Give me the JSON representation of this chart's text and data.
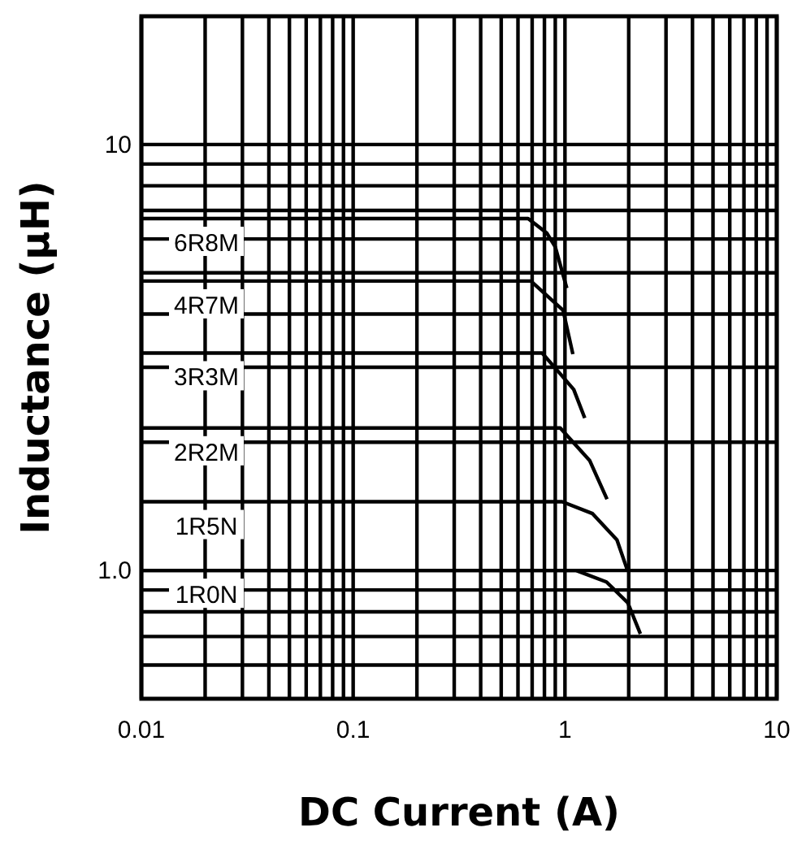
{
  "chart_data": {
    "type": "line",
    "xlabel": "DC Current (A)",
    "ylabel": "Inductance (μH)",
    "log": "xy",
    "grid": true,
    "marker": "none",
    "line_style": "solid",
    "xlim": [
      0.01,
      10
    ],
    "ylim": [
      0.5,
      20
    ],
    "xticks": [
      "0.01",
      {
        "value": 0.02,
        "label": null
      },
      {
        "value": 0.03,
        "label": null
      },
      {
        "value": 0.04,
        "label": null
      },
      {
        "value": 0.05,
        "label": null
      },
      {
        "value": 0.06,
        "label": null
      },
      {
        "value": 0.07,
        "label": null
      },
      {
        "value": 0.08,
        "label": null
      },
      {
        "value": 0.09,
        "label": null
      },
      "0.1",
      {
        "value": 0.2,
        "label": null
      },
      {
        "value": 0.3,
        "label": null
      },
      {
        "value": 0.4,
        "label": null
      },
      {
        "value": 0.5,
        "label": null
      },
      {
        "value": 0.6,
        "label": null
      },
      {
        "value": 0.7,
        "label": null
      },
      {
        "value": 0.8,
        "label": null
      },
      {
        "value": 0.9,
        "label": null
      },
      1,
      {
        "value": 2,
        "label": null
      },
      {
        "value": 3,
        "label": null
      },
      {
        "value": 4,
        "label": null
      },
      {
        "value": 5,
        "label": null
      },
      {
        "value": 6,
        "label": null
      },
      {
        "value": 7,
        "label": null
      },
      {
        "value": 8,
        "label": null
      },
      {
        "value": 9,
        "label": null
      },
      10
    ],
    "yticks": [
      {
        "value": 0.6,
        "label": null
      },
      {
        "value": 0.7,
        "label": null
      },
      {
        "value": 0.8,
        "label": null
      },
      {
        "value": 0.9,
        "label": null
      },
      {
        "value": 1,
        "label": "1.0"
      },
      {
        "value": 2,
        "label": null
      },
      {
        "value": 3,
        "label": null
      },
      {
        "value": 4,
        "label": null
      },
      {
        "value": 5,
        "label": null
      },
      {
        "value": 6,
        "label": null
      },
      {
        "value": 7,
        "label": null
      },
      {
        "value": 8,
        "label": null
      },
      {
        "value": 9,
        "label": null
      },
      10
    ],
    "series": [
      {
        "name": "6R8M",
        "color": "#000000",
        "x": [
          0.01,
          0.67,
          0.82,
          0.9,
          1.02
        ],
        "values": [
          6.7,
          6.7,
          6.2,
          5.75,
          4.6
        ]
      },
      {
        "name": "4R7M",
        "color": "#000000",
        "x": [
          0.01,
          0.69,
          0.98,
          1.09
        ],
        "values": [
          4.78,
          4.78,
          4.08,
          3.22
        ]
      },
      {
        "name": "3R3M",
        "color": "#000000",
        "x": [
          0.01,
          0.78,
          0.92,
          1.1,
          1.24
        ],
        "values": [
          3.24,
          3.24,
          2.95,
          2.66,
          2.28
        ]
      },
      {
        "name": "2R2M",
        "color": "#000000",
        "x": [
          0.01,
          0.95,
          1.31,
          1.58
        ],
        "values": [
          2.16,
          2.16,
          1.81,
          1.47
        ]
      },
      {
        "name": "1R5N",
        "color": "#000000",
        "x": [
          0.01,
          0.97,
          1.35,
          1.76,
          1.96
        ],
        "values": [
          1.45,
          1.45,
          1.36,
          1.18,
          1.01
        ]
      },
      {
        "name": "1R0N",
        "color": "#000000",
        "x": [
          0.01,
          1.13,
          1.57,
          1.98,
          2.27
        ],
        "values": [
          1.0,
          1.0,
          0.94,
          0.84,
          0.71
        ]
      }
    ]
  }
}
